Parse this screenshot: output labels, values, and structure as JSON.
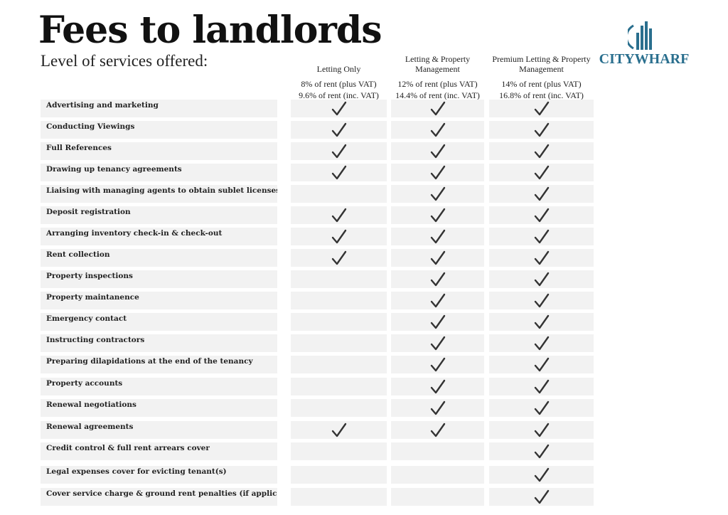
{
  "header": {
    "title": "Fees to landlords",
    "subtitle": "Level of services offered:",
    "brand": "CITYWHARF",
    "brand_color": "#2a6f8e",
    "brand_icon": "buildings-logo-icon"
  },
  "plans": [
    {
      "name": "Letting Only",
      "price_plus_vat": "8% of rent (plus VAT)",
      "price_inc_vat": "9.6% of rent (inc. VAT)"
    },
    {
      "name": "Letting & Property Management",
      "price_plus_vat": "12% of rent (plus VAT)",
      "price_inc_vat": "14.4% of rent (inc. VAT)"
    },
    {
      "name": "Premium Letting & Property Management",
      "price_plus_vat": "14% of rent (plus VAT)",
      "price_inc_vat": "16.8% of rent (inc. VAT)"
    }
  ],
  "services": [
    {
      "label": "Advertising and marketing",
      "included": [
        true,
        true,
        true
      ]
    },
    {
      "label": "Conducting Viewings",
      "included": [
        true,
        true,
        true
      ]
    },
    {
      "label": "Full References",
      "included": [
        true,
        true,
        true
      ]
    },
    {
      "label": "Drawing up tenancy agreements",
      "included": [
        true,
        true,
        true
      ]
    },
    {
      "label": "Liaising with managing agents to obtain sublet licenses",
      "included": [
        false,
        true,
        true
      ]
    },
    {
      "label": "Deposit registration",
      "included": [
        true,
        true,
        true
      ]
    },
    {
      "label": "Arranging inventory check-in & check-out",
      "included": [
        true,
        true,
        true
      ]
    },
    {
      "label": "Rent collection",
      "included": [
        true,
        true,
        true
      ]
    },
    {
      "label": "Property inspections",
      "included": [
        false,
        true,
        true
      ]
    },
    {
      "label": "Property maintanence",
      "included": [
        false,
        true,
        true
      ]
    },
    {
      "label": "Emergency contact",
      "included": [
        false,
        true,
        true
      ]
    },
    {
      "label": "Instructing contractors",
      "included": [
        false,
        true,
        true
      ]
    },
    {
      "label": "Preparing dilapidations at the end of the tenancy",
      "included": [
        false,
        true,
        true
      ]
    },
    {
      "label": "Property accounts",
      "included": [
        false,
        true,
        true
      ]
    },
    {
      "label": "Renewal negotiations",
      "included": [
        false,
        true,
        true
      ]
    },
    {
      "label": "Renewal agreements",
      "included": [
        true,
        true,
        true
      ]
    },
    {
      "label": "Credit control & full rent arrears cover",
      "included": [
        false,
        false,
        true
      ]
    },
    {
      "label": "Legal expenses cover for evicting tenant(s)",
      "included": [
        false,
        false,
        true
      ]
    },
    {
      "label": "Cover service charge & ground rent penalties (if applicable)",
      "included": [
        false,
        false,
        true
      ]
    }
  ]
}
